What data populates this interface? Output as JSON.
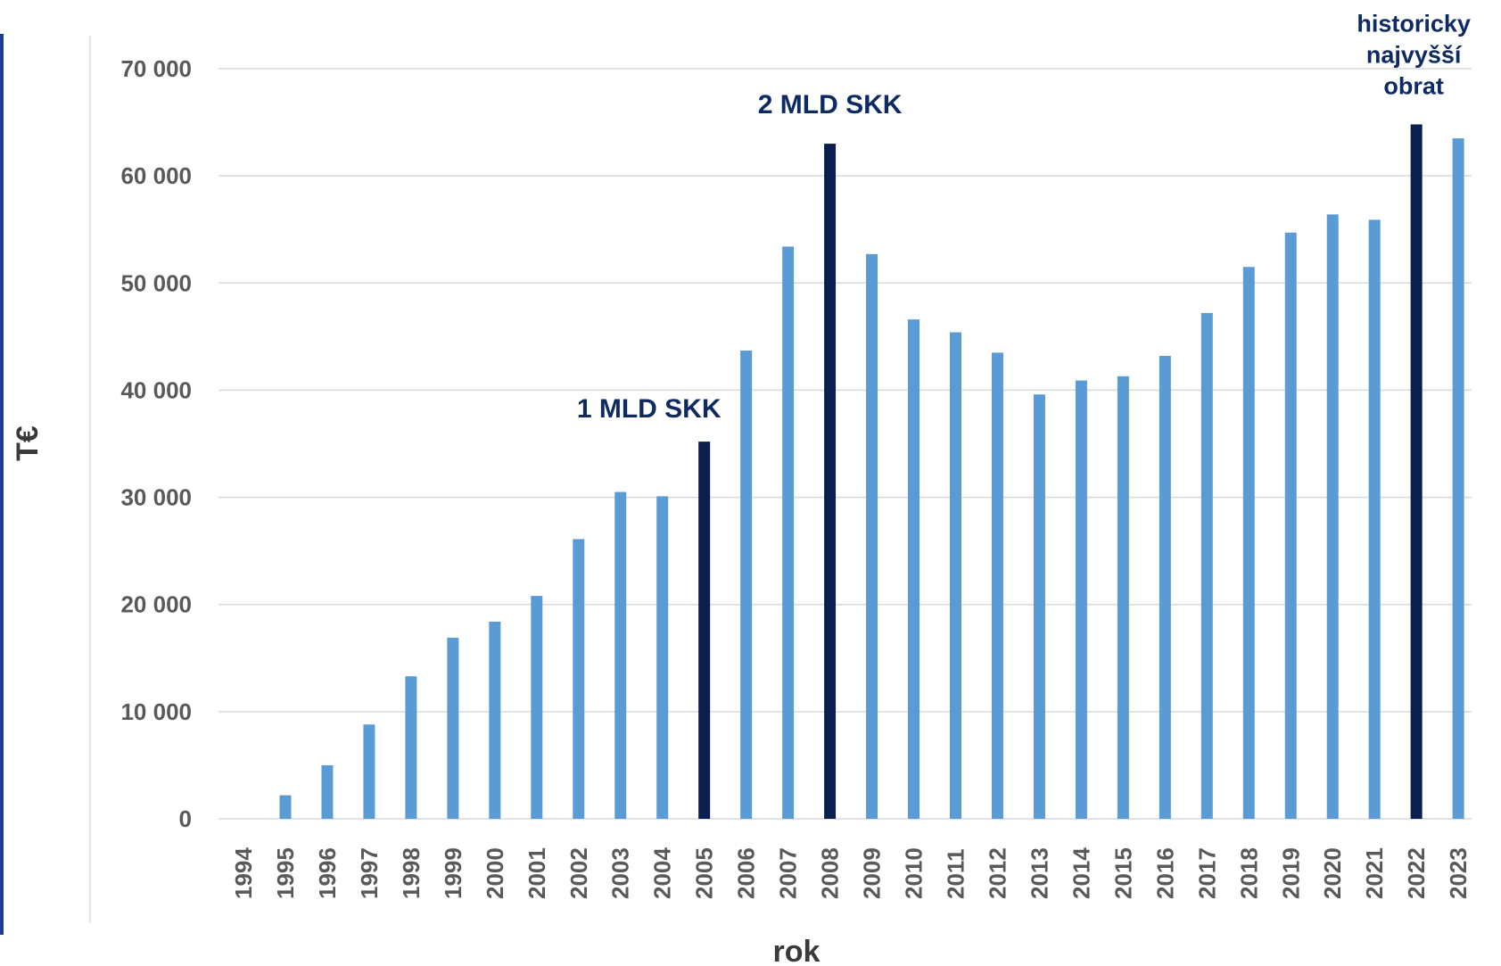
{
  "chart_data": {
    "type": "bar",
    "title": "",
    "xlabel": "rok",
    "ylabel": "T€",
    "ylim": [
      0,
      70000
    ],
    "yticks": [
      0,
      10000,
      20000,
      30000,
      40000,
      50000,
      60000,
      70000
    ],
    "ytick_labels": [
      "0",
      "10 000",
      "20 000",
      "30 000",
      "40 000",
      "50 000",
      "60 000",
      "70 000"
    ],
    "grid": true,
    "legend": "none",
    "categories": [
      "1994",
      "1995",
      "1996",
      "1997",
      "1998",
      "1999",
      "2000",
      "2001",
      "2002",
      "2003",
      "2004",
      "2005",
      "2006",
      "2007",
      "2008",
      "2009",
      "2010",
      "2011",
      "2012",
      "2013",
      "2014",
      "2015",
      "2016",
      "2017",
      "2018",
      "2019",
      "2020",
      "2021",
      "2022",
      "2023"
    ],
    "values": [
      0,
      2200,
      5000,
      8800,
      13300,
      16900,
      18400,
      20800,
      26100,
      30500,
      30100,
      35200,
      43700,
      53400,
      63000,
      52700,
      46600,
      45400,
      43500,
      39600,
      40900,
      41300,
      43200,
      47200,
      51500,
      54700,
      56400,
      55900,
      64800,
      63500
    ],
    "highlighted": [
      "2005",
      "2008",
      "2022"
    ],
    "colors": {
      "bar": "#5b9bd5",
      "highlight": "#0b1f4f",
      "grid": "#d9d9d9",
      "annotation": "#0e2a63",
      "axis_bar": "#1f3b8c"
    },
    "annotations": [
      {
        "category": "2005",
        "text": "1 MLD SKK"
      },
      {
        "category": "2008",
        "text": "2 MLD SKK"
      },
      {
        "category": "2022",
        "lines": [
          "historicky",
          "najvyšší",
          "obrat"
        ]
      }
    ]
  }
}
